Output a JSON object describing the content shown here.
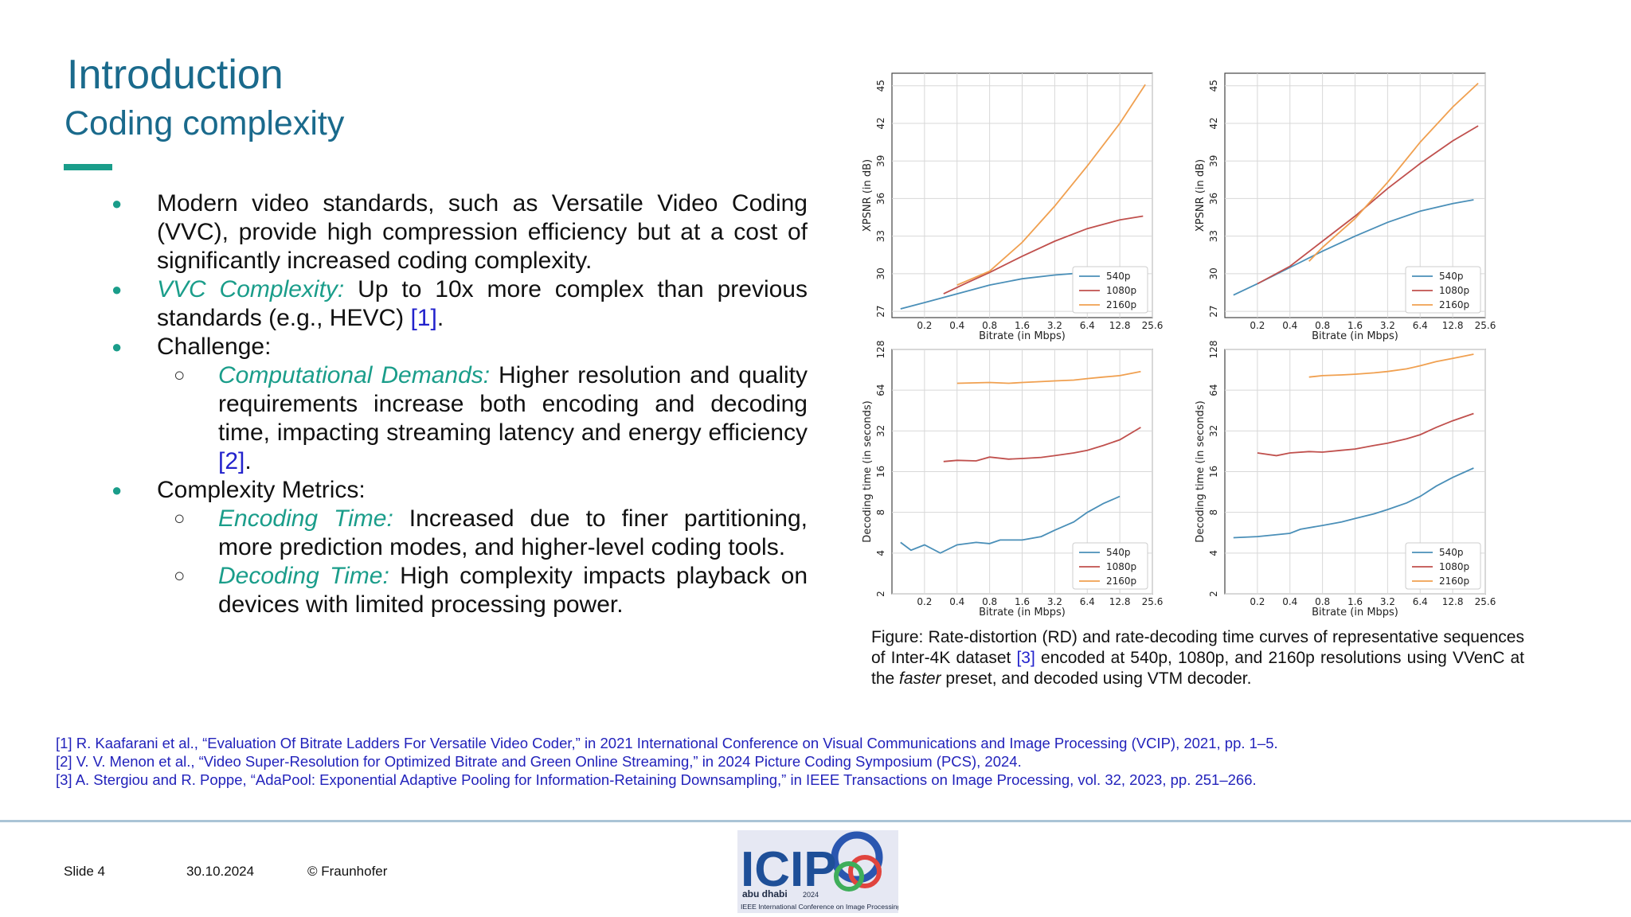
{
  "header": {
    "title": "Introduction",
    "subtitle": "Coding complexity"
  },
  "bullets": {
    "b1": "Modern video standards, such as Versatile Video Coding (VVC), provide high compression efficiency but at a cost of significantly increased coding complexity.",
    "b2_em": "VVC Complexity:",
    "b2_text": " Up to 10x more complex than previous standards (e.g., HEVC) ",
    "b2_cite": "[1]",
    "b3": "Challenge:",
    "b3_sub_em": "Computational Demands:",
    "b3_sub_text": " Higher resolution and quality requirements increase both encoding and decoding time, impacting streaming latency and energy efficiency ",
    "b3_sub_cite": "[2]",
    "b4": "Complexity Metrics:",
    "b4_sub1_em": "Encoding Time:",
    "b4_sub1_text": " Increased due to finer partitioning, more prediction modes, and higher-level coding tools.",
    "b4_sub2_em": "Decoding Time:",
    "b4_sub2_text": " High complexity impacts playback on devices with limited processing power.",
    "period": ".",
    "dot": "●",
    "circle": "○"
  },
  "caption": {
    "part1": "Figure: Rate-distortion (RD) and rate-decoding time curves of representative sequences of Inter-4K dataset ",
    "cite": "[3]",
    "part2": " encoded at 540p, 1080p, and 2160p resolutions using VVenC at the ",
    "em": "faster",
    "part3": " preset, and decoded using VTM decoder."
  },
  "references": [
    "[1] R. Kaafarani et al., “Evaluation Of Bitrate Ladders For Versatile Video Coder,” in 2021 International Conference on Visual Communications and Image Processing (VCIP), 2021, pp. 1–5.",
    "[2] V. V. Menon et al., “Video Super-Resolution for Optimized Bitrate and Green Online Streaming,” in 2024 Picture Coding Symposium (PCS), 2024.",
    "[3] A. Stergiou and R. Poppe, “AdaPool: Exponential Adaptive Pooling for Information-Retaining Downsampling,” in IEEE Transactions on Image Processing, vol. 32, 2023, pp. 251–266."
  ],
  "footer": {
    "slide": "Slide 4",
    "date": "30.10.2024",
    "copyright": "© Fraunhofer"
  },
  "logo": {
    "text": "ICIP",
    "location": "abu dhabi",
    "year": "2024",
    "caption": "IEEE International Conference on Image Processing",
    "colors": {
      "text": "#1e4f98",
      "ring_blue": "#2a56b0",
      "ring_red": "#e0443e",
      "ring_green": "#3fae5a",
      "background": "#e6e8f3"
    }
  },
  "colors": {
    "title": "#1a6a8c",
    "accent": "#1a9d8a",
    "citation": "#2222cc",
    "s540": "#4a8fb8",
    "s1080": "#c0504d",
    "s2160": "#f0a050"
  },
  "chart_data": [
    {
      "type": "line",
      "xscale": "log2",
      "grid": true,
      "legend": "lower-right",
      "xticks": [
        "0.2",
        "0.4",
        "0.8",
        "1.6",
        "3.2",
        "6.4",
        "12.8",
        "25.6"
      ],
      "yticks": [
        "27",
        "30",
        "33",
        "36",
        "39",
        "42",
        "45"
      ],
      "xlabel": "Bitrate (in Mbps)",
      "ylabel": "XPSNR (in dB)",
      "xlim": [
        0.1,
        25.6
      ],
      "ylim": [
        26.5,
        46
      ],
      "series": [
        {
          "name": "540p",
          "points": [
            [
              0.12,
              27.2
            ],
            [
              0.2,
              27.7
            ],
            [
              0.4,
              28.4
            ],
            [
              0.8,
              29.1
            ],
            [
              1.6,
              29.6
            ],
            [
              3.2,
              29.9
            ],
            [
              6.4,
              30.1
            ],
            [
              10,
              30.2
            ]
          ]
        },
        {
          "name": "1080p",
          "points": [
            [
              0.3,
              28.4
            ],
            [
              0.5,
              29.3
            ],
            [
              0.8,
              30.1
            ],
            [
              1.6,
              31.4
            ],
            [
              3.2,
              32.6
            ],
            [
              6.4,
              33.6
            ],
            [
              12.8,
              34.3
            ],
            [
              21,
              34.6
            ]
          ]
        },
        {
          "name": "2160p",
          "points": [
            [
              0.4,
              29.1
            ],
            [
              0.8,
              30.2
            ],
            [
              1.6,
              32.5
            ],
            [
              3.2,
              35.4
            ],
            [
              6.4,
              38.6
            ],
            [
              12.8,
              42.0
            ],
            [
              22,
              45.1
            ]
          ]
        }
      ]
    },
    {
      "type": "line",
      "xscale": "log2",
      "grid": true,
      "legend": "lower-right",
      "xticks": [
        "0.2",
        "0.4",
        "0.8",
        "1.6",
        "3.2",
        "6.4",
        "12.8",
        "25.6"
      ],
      "yticks": [
        "27",
        "30",
        "33",
        "36",
        "39",
        "42",
        "45"
      ],
      "xlabel": "Bitrate (in Mbps)",
      "ylabel": "XPSNR (in dB)",
      "xlim": [
        0.1,
        25.6
      ],
      "ylim": [
        26.5,
        46
      ],
      "series": [
        {
          "name": "540p",
          "points": [
            [
              0.12,
              28.3
            ],
            [
              0.2,
              29.2
            ],
            [
              0.4,
              30.5
            ],
            [
              0.8,
              31.8
            ],
            [
              1.6,
              33.0
            ],
            [
              3.2,
              34.1
            ],
            [
              6.4,
              35.0
            ],
            [
              12.8,
              35.6
            ],
            [
              20,
              35.9
            ]
          ]
        },
        {
          "name": "1080p",
          "points": [
            [
              0.2,
              29.2
            ],
            [
              0.4,
              30.6
            ],
            [
              0.8,
              32.6
            ],
            [
              1.6,
              34.6
            ],
            [
              3.2,
              36.8
            ],
            [
              6.4,
              38.8
            ],
            [
              12.8,
              40.6
            ],
            [
              22,
              41.8
            ]
          ]
        },
        {
          "name": "2160p",
          "points": [
            [
              0.6,
              31.0
            ],
            [
              0.8,
              32.1
            ],
            [
              1.6,
              34.4
            ],
            [
              3.2,
              37.3
            ],
            [
              6.4,
              40.5
            ],
            [
              12.8,
              43.3
            ],
            [
              22,
              45.2
            ]
          ]
        }
      ]
    },
    {
      "type": "line",
      "xscale": "log2",
      "yscale": "log2",
      "grid": true,
      "legend": "lower-right",
      "xticks": [
        "0.2",
        "0.4",
        "0.8",
        "1.6",
        "3.2",
        "6.4",
        "12.8",
        "25.6"
      ],
      "yticks": [
        "2",
        "4",
        "8",
        "16",
        "32",
        "64",
        "128"
      ],
      "xlabel": "Bitrate (in Mbps)",
      "ylabel": "Decoding time (in seconds)",
      "xlim": [
        0.1,
        25.6
      ],
      "ylim": [
        2,
        128
      ],
      "series": [
        {
          "name": "540p",
          "points": [
            [
              0.12,
              4.8
            ],
            [
              0.15,
              4.2
            ],
            [
              0.2,
              4.6
            ],
            [
              0.28,
              4.0
            ],
            [
              0.4,
              4.6
            ],
            [
              0.6,
              4.8
            ],
            [
              0.8,
              4.7
            ],
            [
              1.0,
              5.0
            ],
            [
              1.6,
              5.0
            ],
            [
              2.4,
              5.3
            ],
            [
              3.2,
              5.9
            ],
            [
              4.8,
              6.8
            ],
            [
              6.4,
              8.0
            ],
            [
              9,
              9.3
            ],
            [
              12.8,
              10.5
            ]
          ]
        },
        {
          "name": "1080p",
          "points": [
            [
              0.3,
              19
            ],
            [
              0.4,
              19.4
            ],
            [
              0.6,
              19.2
            ],
            [
              0.8,
              20.5
            ],
            [
              1.2,
              19.8
            ],
            [
              1.6,
              20.0
            ],
            [
              2.4,
              20.4
            ],
            [
              3.2,
              21.0
            ],
            [
              4.8,
              22.0
            ],
            [
              6.4,
              23.0
            ],
            [
              9,
              25.0
            ],
            [
              12.8,
              27.5
            ],
            [
              20,
              34.0
            ]
          ]
        },
        {
          "name": "2160p",
          "points": [
            [
              0.4,
              72
            ],
            [
              0.8,
              73
            ],
            [
              1.2,
              72
            ],
            [
              1.6,
              73
            ],
            [
              2.4,
              74
            ],
            [
              3.2,
              75
            ],
            [
              4.8,
              76
            ],
            [
              6.4,
              78
            ],
            [
              9,
              80
            ],
            [
              12.8,
              82
            ],
            [
              20,
              88
            ]
          ]
        }
      ]
    },
    {
      "type": "line",
      "xscale": "log2",
      "yscale": "log2",
      "grid": true,
      "legend": "lower-right",
      "xticks": [
        "0.2",
        "0.4",
        "0.8",
        "1.6",
        "3.2",
        "6.4",
        "12.8",
        "25.6"
      ],
      "yticks": [
        "2",
        "4",
        "8",
        "16",
        "32",
        "64",
        "128"
      ],
      "xlabel": "Bitrate (in Mbps)",
      "ylabel": "Decoding time (in seconds)",
      "xlim": [
        0.1,
        25.6
      ],
      "ylim": [
        2,
        128
      ],
      "series": [
        {
          "name": "540p",
          "points": [
            [
              0.12,
              5.2
            ],
            [
              0.2,
              5.3
            ],
            [
              0.4,
              5.6
            ],
            [
              0.5,
              6.0
            ],
            [
              0.8,
              6.4
            ],
            [
              1.2,
              6.8
            ],
            [
              1.6,
              7.2
            ],
            [
              2.4,
              7.8
            ],
            [
              3.2,
              8.4
            ],
            [
              4.8,
              9.4
            ],
            [
              6.4,
              10.5
            ],
            [
              9,
              12.5
            ],
            [
              12.8,
              14.5
            ],
            [
              20,
              17.0
            ]
          ]
        },
        {
          "name": "1080p",
          "points": [
            [
              0.2,
              22
            ],
            [
              0.3,
              21
            ],
            [
              0.4,
              22
            ],
            [
              0.6,
              22.5
            ],
            [
              0.8,
              22.3
            ],
            [
              1.2,
              23
            ],
            [
              1.6,
              23.5
            ],
            [
              2.4,
              25
            ],
            [
              3.2,
              26
            ],
            [
              4.8,
              28
            ],
            [
              6.4,
              30
            ],
            [
              9,
              34
            ],
            [
              12.8,
              38
            ],
            [
              20,
              43
            ]
          ]
        },
        {
          "name": "2160p",
          "points": [
            [
              0.6,
              80
            ],
            [
              0.8,
              82
            ],
            [
              1.2,
              83
            ],
            [
              1.6,
              84
            ],
            [
              2.4,
              86
            ],
            [
              3.2,
              88
            ],
            [
              4.8,
              92
            ],
            [
              6.4,
              97
            ],
            [
              9,
              104
            ],
            [
              12.8,
              110
            ],
            [
              20,
              118
            ]
          ]
        }
      ]
    }
  ]
}
